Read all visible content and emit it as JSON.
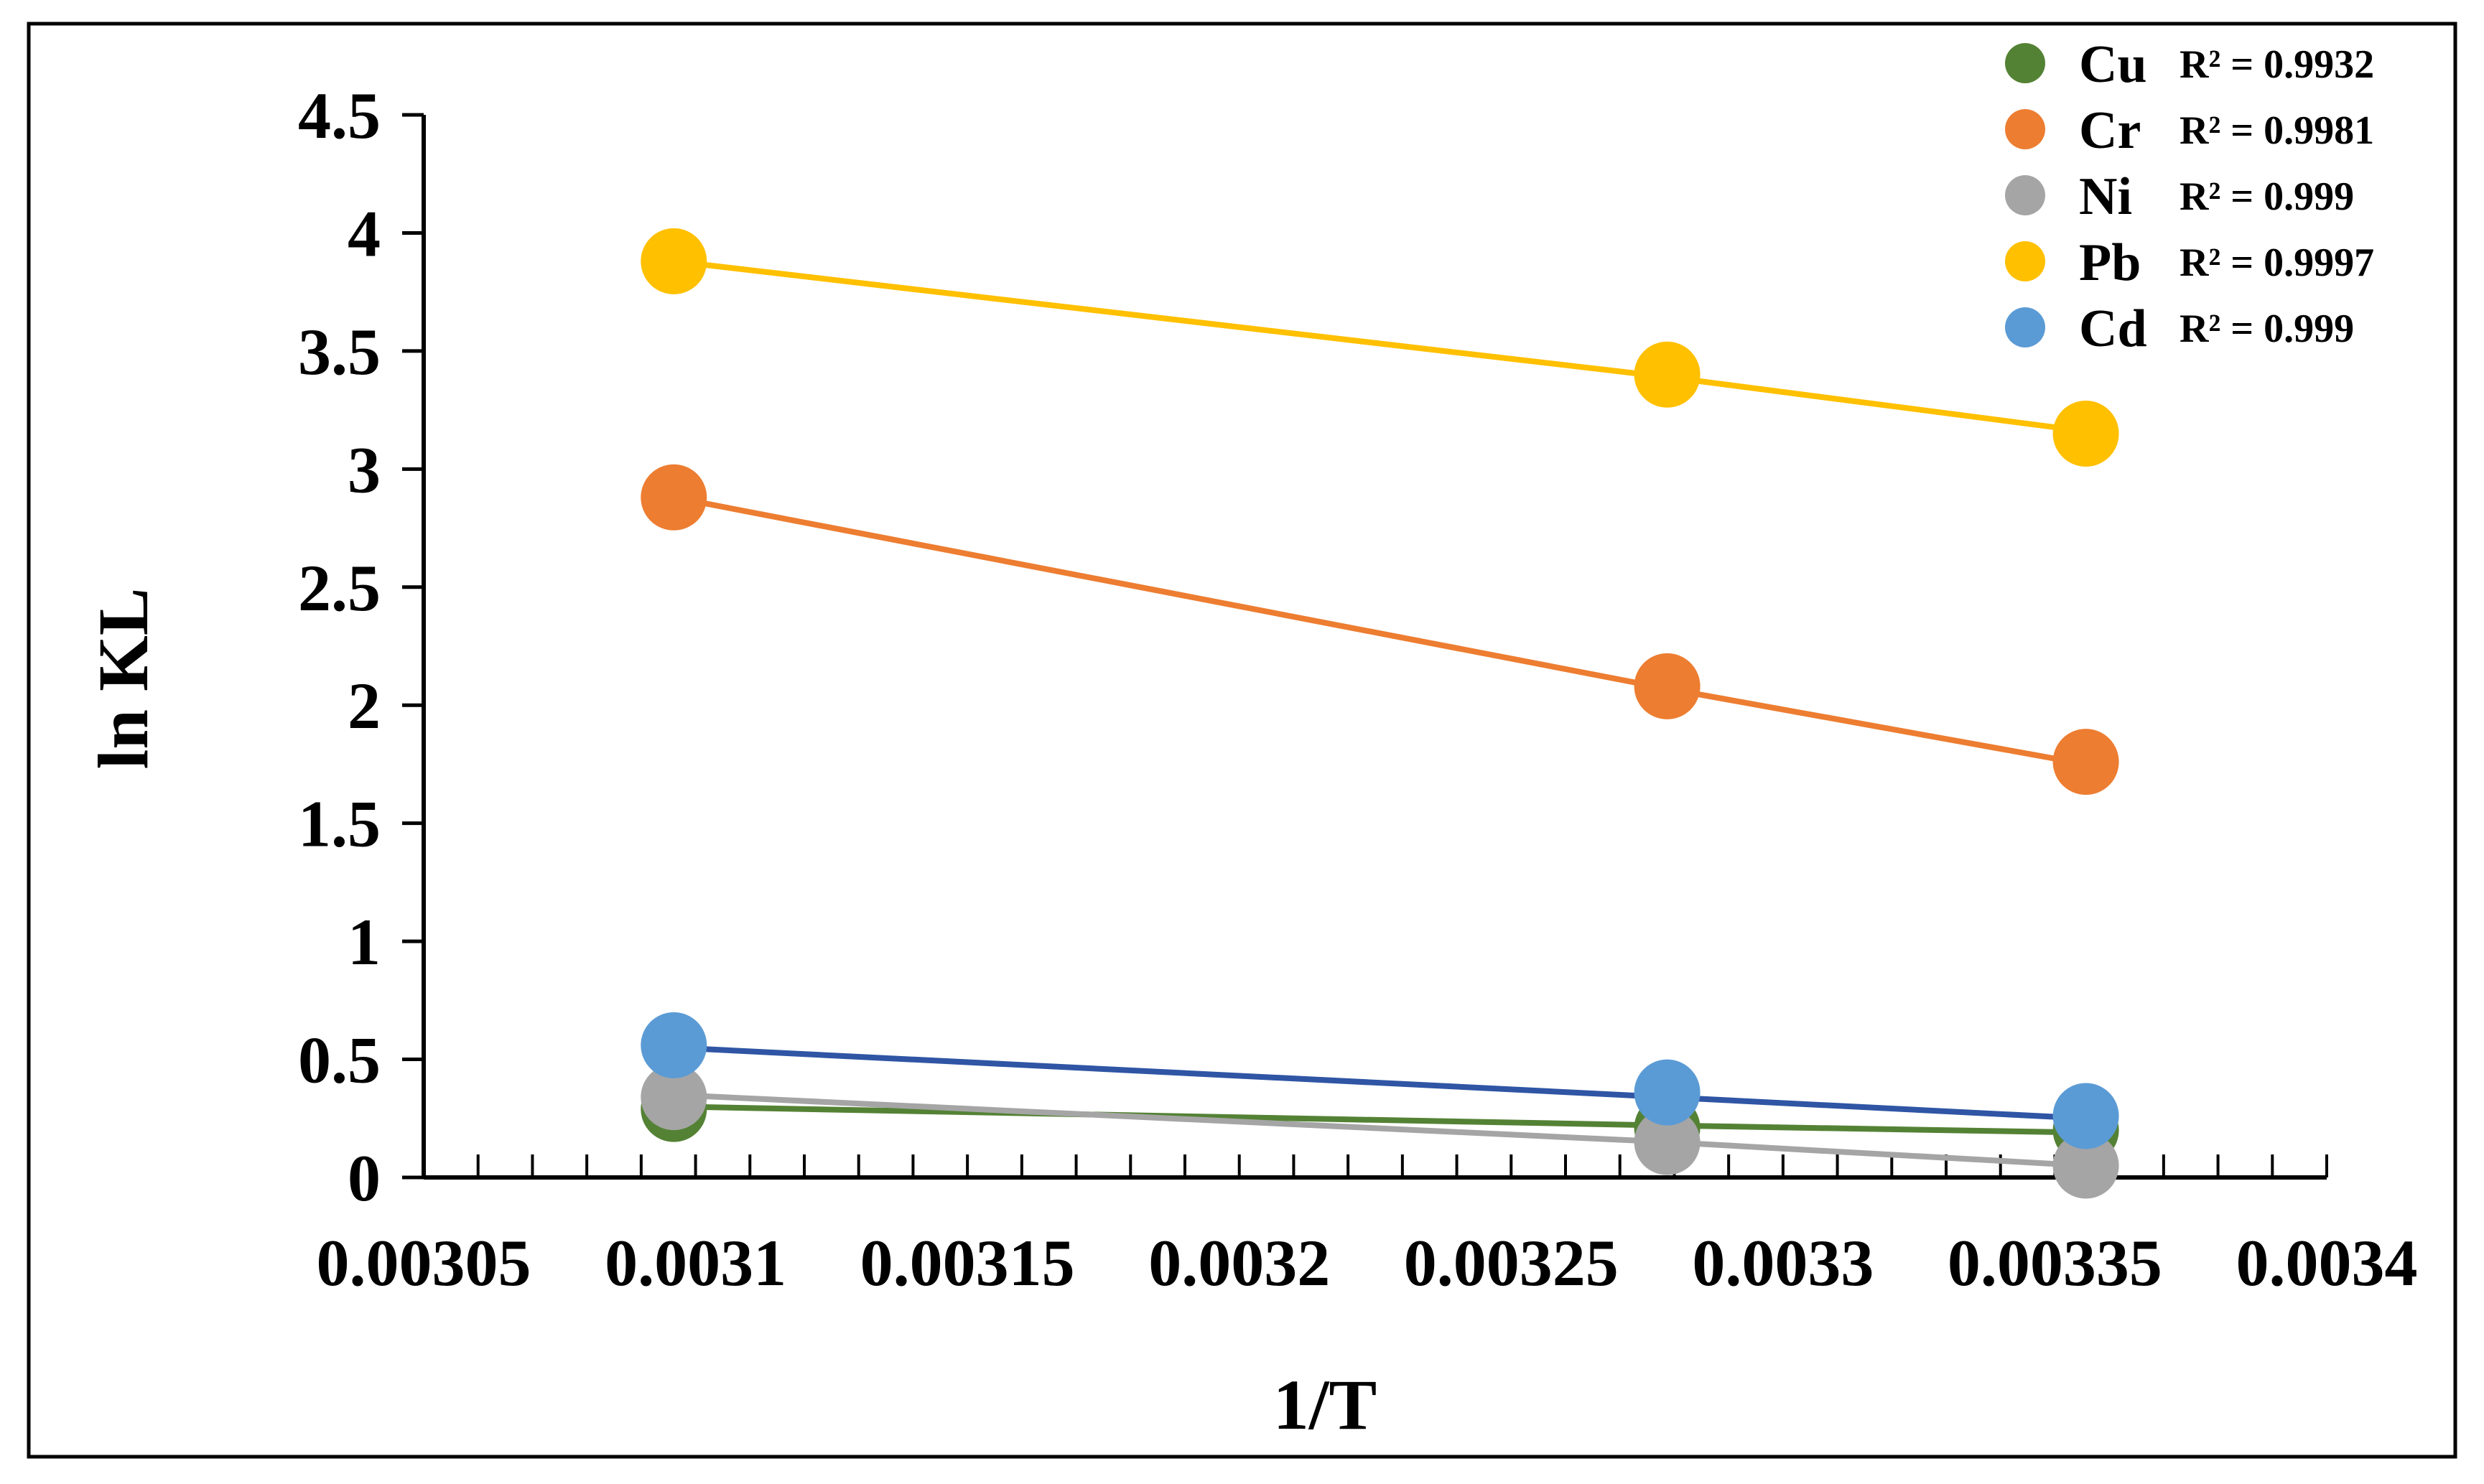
{
  "chart_data": {
    "type": "scatter",
    "xlabel": "1/T",
    "ylabel": "ln KL",
    "xlim": [
      0.00305,
      0.0034
    ],
    "ylim": [
      0,
      4.5
    ],
    "x_ticks": [
      "0.00305",
      "0.0031",
      "0.00315",
      "0.0032",
      "0.00325",
      "0.0033",
      "0.00335",
      "0.0034"
    ],
    "y_ticks": [
      "0",
      "0.5",
      "1",
      "1.5",
      "2",
      "2.5",
      "3",
      "3.5",
      "4",
      "4.5"
    ],
    "x_minor_step": 1e-05,
    "grid": false,
    "legend_position": "top-right",
    "trendlines": true,
    "series": [
      {
        "name": "Cu",
        "r2": "R² = 0.9932",
        "color": "#548235",
        "line_color": "#548235",
        "x": [
          0.003096,
          0.0032787,
          0.0033557
        ],
        "y": [
          0.29,
          0.21,
          0.2
        ],
        "fit_y": [
          0.3,
          0.22,
          0.19
        ]
      },
      {
        "name": "Cr",
        "r2": "R² = 0.9981",
        "color": "#ED7D31",
        "line_color": "#ED7D31",
        "x": [
          0.003096,
          0.0032787,
          0.0033557
        ],
        "y": [
          2.88,
          2.08,
          1.76
        ],
        "fit_y": [
          2.88,
          2.07,
          1.75
        ]
      },
      {
        "name": "Ni",
        "r2": "R² = 0.999",
        "color": "#A5A5A5",
        "line_color": "#A5A5A5",
        "x": [
          0.003096,
          0.0032787,
          0.0033557
        ],
        "y": [
          0.34,
          0.15,
          0.05
        ],
        "fit_y": [
          0.35,
          0.15,
          0.05
        ]
      },
      {
        "name": "Pb",
        "r2": "R² = 0.9997",
        "color": "#FFC000",
        "line_color": "#FFC000",
        "x": [
          0.003096,
          0.0032787,
          0.0033557
        ],
        "y": [
          3.88,
          3.4,
          3.15
        ],
        "fit_y": [
          3.88,
          3.39,
          3.16
        ]
      },
      {
        "name": "Cd",
        "r2": "R² = 0.999",
        "color": "#5B9BD5",
        "line_color": "#2F55A4",
        "x": [
          0.003096,
          0.0032787,
          0.0033557
        ],
        "y": [
          0.56,
          0.36,
          0.26
        ],
        "fit_y": [
          0.55,
          0.34,
          0.25
        ]
      }
    ]
  }
}
